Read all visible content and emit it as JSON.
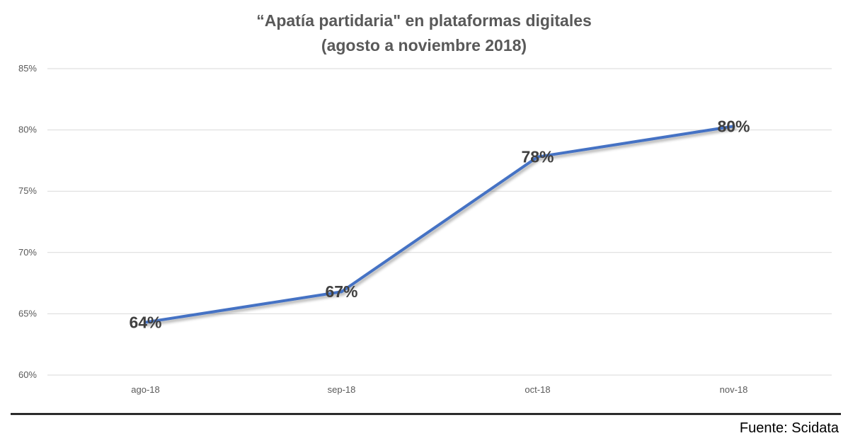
{
  "chart_data": {
    "type": "line",
    "title": "“Apatía partidaria\" en plataformas digitales",
    "subtitle": "(agosto a noviembre 2018)",
    "categories": [
      "ago-18",
      "sep-18",
      "oct-18",
      "nov-18"
    ],
    "series": [
      {
        "values": [
          64.3,
          66.8,
          77.8,
          80.3
        ],
        "data_labels": [
          "64%",
          "67%",
          "78%",
          "80%"
        ],
        "color": "#4472C4"
      }
    ],
    "y_ticks": [
      "60%",
      "65%",
      "70%",
      "75%",
      "80%",
      "85%"
    ],
    "ylim": [
      60,
      85
    ],
    "grid": true,
    "legend": "none"
  },
  "footer": {
    "source": "Fuente: Scidata"
  },
  "colors": {
    "line": "#4472C4",
    "grid": "#d9d9d9",
    "divider": "#000000"
  }
}
